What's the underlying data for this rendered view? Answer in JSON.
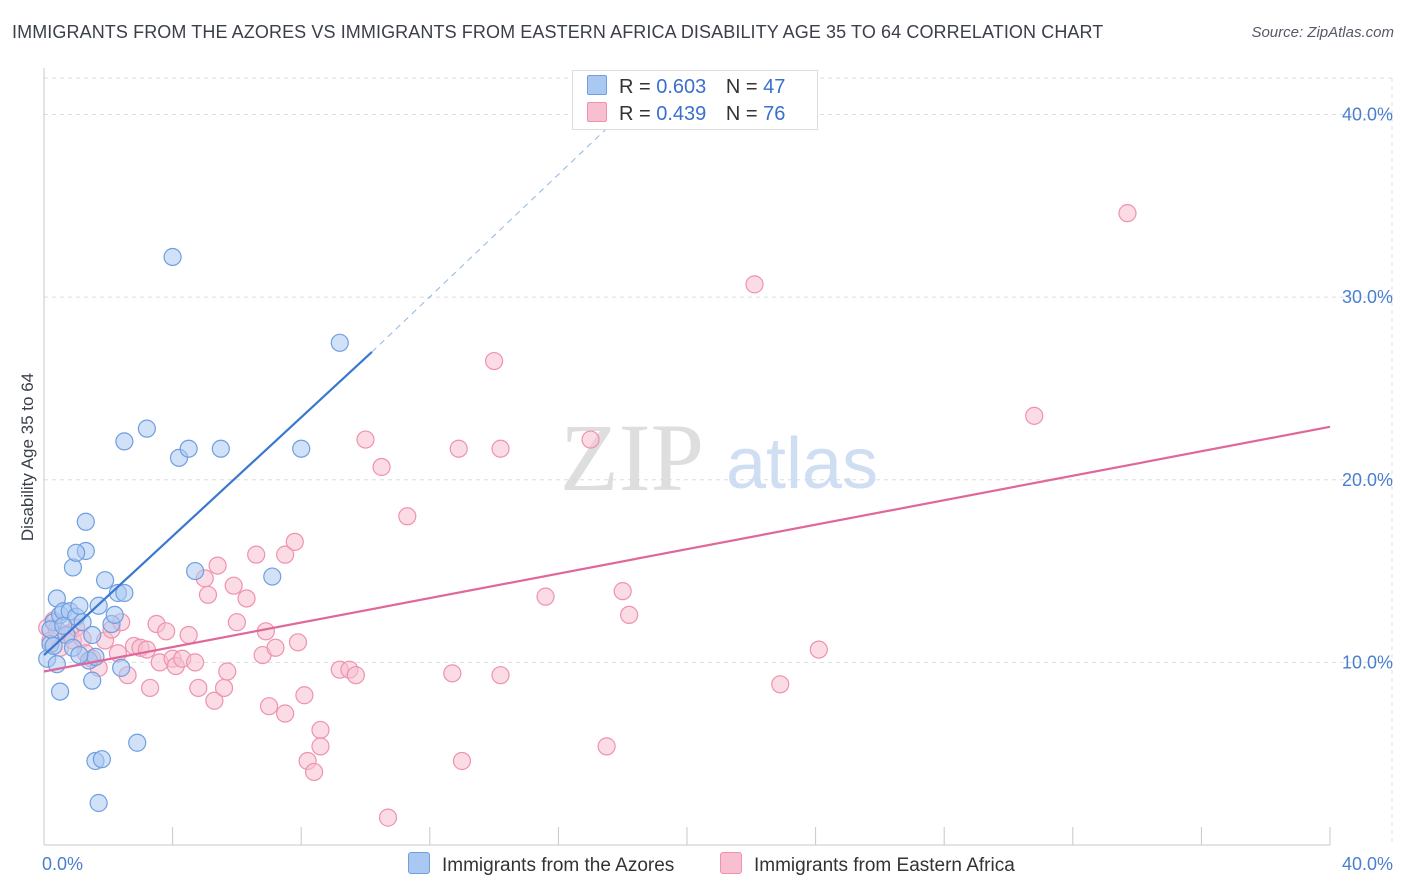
{
  "header": {
    "title": "IMMIGRANTS FROM THE AZORES VS IMMIGRANTS FROM EASTERN AFRICA DISABILITY AGE 35 TO 64 CORRELATION CHART",
    "source": "Source: ZipAtlas.com"
  },
  "legend": {
    "r_label": "R =",
    "n_label": "N =",
    "azores": {
      "r": "0.603",
      "n": "47"
    },
    "eafrica": {
      "r": "0.439",
      "n": "76"
    }
  },
  "colors": {
    "azores_fill": "#a9c8f2",
    "azores_stroke": "#6f9fe0",
    "azores_line": "#3a78d0",
    "eafrica_fill": "#f7bfd0",
    "eafrica_stroke": "#ee92b0",
    "eafrica_line": "#e0679a",
    "grid": "#dddddd",
    "tick_text": "#4a7fd0"
  },
  "watermark": {
    "zip": "ZIP",
    "atlas": "atlas"
  },
  "chart_data": {
    "type": "scatter",
    "title": "IMMIGRANTS FROM THE AZORES VS IMMIGRANTS FROM EASTERN AFRICA DISABILITY AGE 35 TO 64 CORRELATION CHART",
    "xlabel": "",
    "ylabel": "Disability Age 35 to 64",
    "xlim": [
      0,
      40
    ],
    "ylim": [
      0,
      42
    ],
    "y_ticks": [
      10,
      20,
      30,
      40
    ],
    "y_tick_labels": [
      "10.0%",
      "20.0%",
      "30.0%",
      "40.0%"
    ],
    "x_tick_labels": [
      "0.0%",
      "40.0%"
    ],
    "series": [
      {
        "name": "Immigrants from the Azores",
        "r": 0.603,
        "n": 47,
        "trend": {
          "x_start": 0,
          "y_start": 10.4,
          "x_end": 10.2,
          "y_end": 27.0,
          "dash_x_end": 17.6,
          "dash_y_end": 39.4
        },
        "points": [
          [
            0.2,
            11.0
          ],
          [
            0.3,
            12.2
          ],
          [
            0.2,
            11.8
          ],
          [
            0.1,
            10.2
          ],
          [
            0.4,
            13.5
          ],
          [
            0.5,
            12.6
          ],
          [
            0.6,
            12.8
          ],
          [
            0.5,
            8.4
          ],
          [
            0.4,
            9.9
          ],
          [
            0.8,
            12.8
          ],
          [
            0.7,
            11.5
          ],
          [
            0.9,
            10.8
          ],
          [
            1.0,
            12.5
          ],
          [
            1.1,
            13.1
          ],
          [
            1.3,
            17.7
          ],
          [
            1.3,
            16.1
          ],
          [
            0.9,
            15.2
          ],
          [
            1.0,
            16.0
          ],
          [
            1.2,
            12.2
          ],
          [
            1.4,
            10.1
          ],
          [
            1.5,
            9.0
          ],
          [
            1.6,
            10.3
          ],
          [
            1.5,
            11.5
          ],
          [
            1.6,
            4.6
          ],
          [
            1.7,
            13.1
          ],
          [
            1.8,
            4.7
          ],
          [
            1.7,
            2.3
          ],
          [
            1.9,
            14.5
          ],
          [
            2.1,
            12.1
          ],
          [
            2.2,
            12.6
          ],
          [
            2.3,
            13.8
          ],
          [
            2.5,
            13.8
          ],
          [
            2.4,
            9.7
          ],
          [
            2.5,
            22.1
          ],
          [
            2.9,
            5.6
          ],
          [
            3.2,
            22.8
          ],
          [
            4.0,
            32.2
          ],
          [
            4.2,
            21.2
          ],
          [
            4.5,
            21.7
          ],
          [
            4.7,
            15.0
          ],
          [
            5.5,
            21.7
          ],
          [
            7.1,
            14.7
          ],
          [
            8.0,
            21.7
          ],
          [
            9.2,
            27.5
          ],
          [
            0.3,
            10.9
          ],
          [
            1.1,
            10.4
          ],
          [
            0.6,
            12.0
          ]
        ]
      },
      {
        "name": "Immigrants from Eastern Africa",
        "r": 0.439,
        "n": 76,
        "trend": {
          "x_start": 0,
          "y_start": 9.5,
          "x_end": 40,
          "y_end": 22.9
        },
        "points": [
          [
            0.1,
            11.9
          ],
          [
            0.2,
            11.2
          ],
          [
            0.3,
            12.3
          ],
          [
            0.4,
            11.8
          ],
          [
            0.5,
            10.8
          ],
          [
            0.8,
            11.6
          ],
          [
            0.9,
            11.2
          ],
          [
            1.0,
            11.9
          ],
          [
            1.2,
            11.3
          ],
          [
            1.3,
            10.5
          ],
          [
            1.5,
            10.2
          ],
          [
            1.7,
            9.7
          ],
          [
            1.9,
            11.2
          ],
          [
            2.1,
            11.8
          ],
          [
            2.3,
            10.5
          ],
          [
            2.4,
            12.2
          ],
          [
            2.6,
            9.3
          ],
          [
            2.8,
            10.9
          ],
          [
            3.0,
            10.8
          ],
          [
            3.2,
            10.7
          ],
          [
            3.3,
            8.6
          ],
          [
            3.5,
            12.1
          ],
          [
            3.6,
            10.0
          ],
          [
            3.8,
            11.7
          ],
          [
            4.0,
            10.2
          ],
          [
            4.1,
            9.8
          ],
          [
            4.3,
            10.2
          ],
          [
            4.5,
            11.5
          ],
          [
            4.7,
            10.0
          ],
          [
            4.8,
            8.6
          ],
          [
            5.0,
            14.6
          ],
          [
            5.1,
            13.7
          ],
          [
            5.3,
            7.9
          ],
          [
            5.4,
            15.3
          ],
          [
            5.6,
            8.6
          ],
          [
            5.7,
            9.5
          ],
          [
            5.9,
            14.2
          ],
          [
            6.0,
            12.2
          ],
          [
            6.3,
            13.5
          ],
          [
            6.6,
            15.9
          ],
          [
            6.8,
            10.4
          ],
          [
            6.9,
            11.7
          ],
          [
            7.0,
            7.6
          ],
          [
            7.2,
            10.8
          ],
          [
            7.5,
            7.2
          ],
          [
            7.5,
            15.9
          ],
          [
            7.8,
            16.6
          ],
          [
            7.9,
            11.1
          ],
          [
            8.1,
            8.2
          ],
          [
            8.2,
            4.6
          ],
          [
            8.4,
            4.0
          ],
          [
            8.6,
            6.3
          ],
          [
            8.6,
            5.4
          ],
          [
            9.2,
            9.6
          ],
          [
            9.5,
            9.6
          ],
          [
            9.7,
            9.3
          ],
          [
            10.0,
            22.2
          ],
          [
            10.5,
            20.7
          ],
          [
            10.7,
            1.5
          ],
          [
            11.3,
            18.0
          ],
          [
            12.7,
            9.4
          ],
          [
            12.9,
            21.7
          ],
          [
            13.0,
            4.6
          ],
          [
            14.0,
            26.5
          ],
          [
            14.2,
            9.3
          ],
          [
            14.2,
            21.7
          ],
          [
            15.6,
            13.6
          ],
          [
            17.0,
            22.2
          ],
          [
            17.5,
            5.4
          ],
          [
            18.0,
            13.9
          ],
          [
            18.2,
            12.6
          ],
          [
            22.1,
            30.7
          ],
          [
            22.9,
            8.8
          ],
          [
            24.1,
            10.7
          ],
          [
            30.8,
            23.5
          ],
          [
            33.7,
            34.6
          ]
        ]
      }
    ]
  },
  "bottom_legend": {
    "azores": "Immigrants from the Azores",
    "eafrica": "Immigrants from Eastern Africa"
  }
}
